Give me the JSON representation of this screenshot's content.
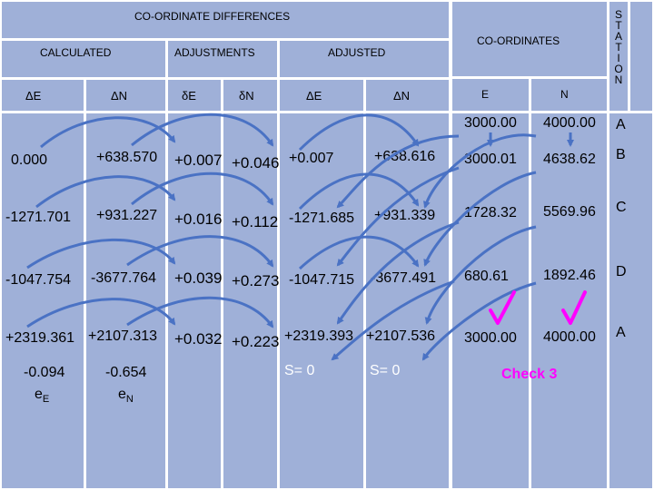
{
  "headers": {
    "coordinate_differences": "CO-ORDINATE DIFFERENCES",
    "coordinates": "CO-ORDINATES",
    "calculated": "CALCULATED",
    "adjustments": "ADJUSTMENTS",
    "adjusted": "ADJUSTED",
    "station_letters": [
      "S",
      "T",
      "A",
      "T",
      "I",
      "O",
      "N"
    ],
    "col_dE": "ΔE",
    "col_dN": "ΔN",
    "col_corrE": "δE",
    "col_corrN": "δN",
    "col_adjE": "ΔE",
    "col_adjN": "ΔN",
    "col_E": "E",
    "col_N": "N"
  },
  "start": {
    "E": "3000.00",
    "N": "4000.00",
    "station": "A"
  },
  "rows": [
    {
      "dE": "0.000",
      "dN": "+638.570",
      "corrE": "+0.007",
      "corrN": "+0.046",
      "adjE": "+0.007",
      "adjN": "+638.616",
      "E": "3000.01",
      "N": "4638.62",
      "station": "B"
    },
    {
      "dE": "-1271.701",
      "dN": "+931.227",
      "corrE": "+0.016",
      "corrN": "+0.112",
      "adjE": "-1271.685",
      "adjN": "+931.339",
      "E": "1728.32",
      "N": "5569.96",
      "station": "C"
    },
    {
      "dE": "-1047.754",
      "dN": "-3677.764",
      "corrE": "+0.039",
      "corrN": "+0.273",
      "adjE": "-1047.715",
      "adjN": "-3677.491",
      "E": "680.61",
      "N": "1892.46",
      "station": "D"
    },
    {
      "dE": "+2319.361",
      "dN": "+2107.313",
      "corrE": "+0.032",
      "corrN": "+0.223",
      "adjE": "+2319.393",
      "adjN": "+2107.536",
      "E": "3000.00",
      "N": "4000.00",
      "station": "A"
    }
  ],
  "totals": {
    "misclosureE": "-0.094",
    "misclosureN": "-0.654",
    "labelE_main": "e",
    "labelE_sub": "E",
    "labelN_main": "e",
    "labelN_sub": "N",
    "sumE": "S= 0",
    "sumN": "S= 0",
    "check": "Check 3"
  },
  "colors": {
    "cell": "#9fb0d8",
    "arrow": "#4a72c4",
    "total_text": "#ffffff",
    "check": "#ff00ff"
  }
}
